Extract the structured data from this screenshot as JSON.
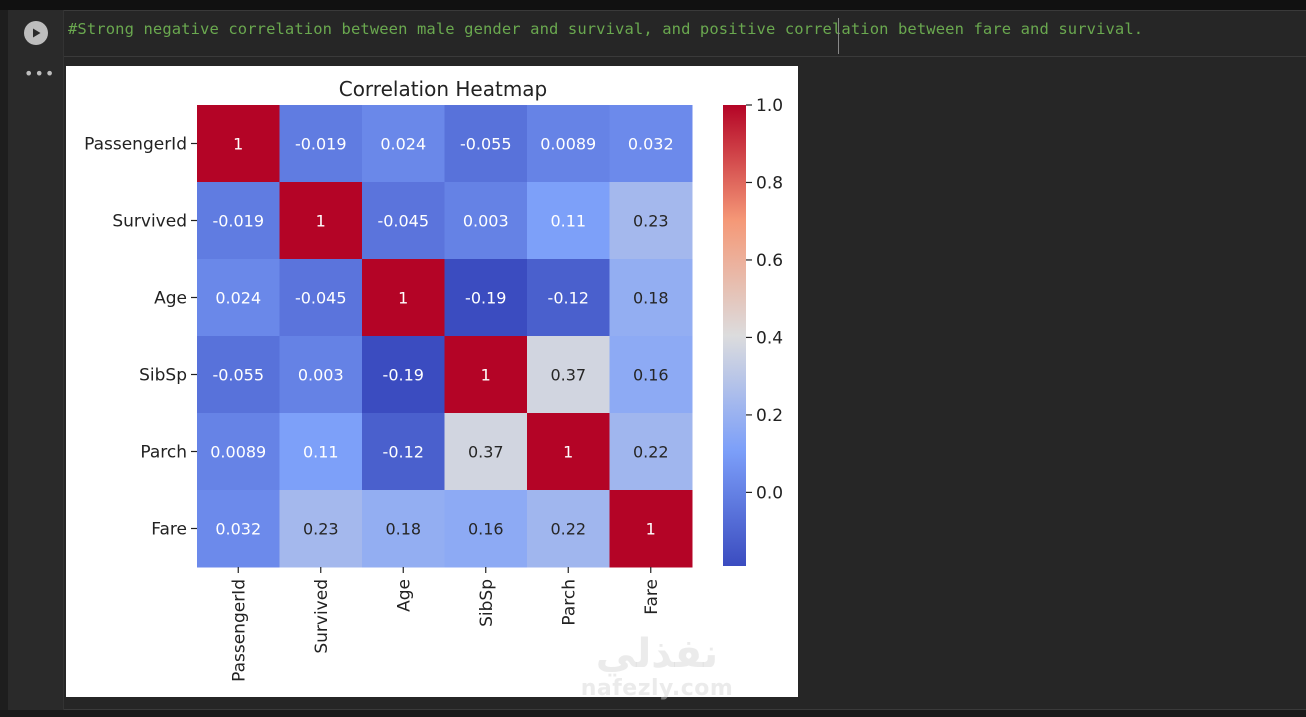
{
  "notebook": {
    "code_line": "#Strong negative correlation between male gender and survival, and positive correlation between fare and survival.",
    "run_icon": "play-icon",
    "more_icon": "more-horizontal-icon"
  },
  "chart_data": {
    "type": "heatmap",
    "title": "Correlation Heatmap",
    "labels": [
      "PassengerId",
      "Survived",
      "Age",
      "SibSp",
      "Parch",
      "Fare"
    ],
    "matrix": [
      [
        1,
        -0.019,
        0.024,
        -0.055,
        0.0089,
        0.032
      ],
      [
        -0.019,
        1,
        -0.045,
        0.003,
        0.11,
        0.23
      ],
      [
        0.024,
        -0.045,
        1,
        -0.19,
        -0.12,
        0.18
      ],
      [
        -0.055,
        0.003,
        -0.19,
        1,
        0.37,
        0.16
      ],
      [
        0.0089,
        0.11,
        -0.12,
        0.37,
        1,
        0.22
      ],
      [
        0.032,
        0.23,
        0.18,
        0.16,
        0.22,
        1
      ]
    ],
    "cell_text": [
      [
        "1",
        "-0.019",
        "0.024",
        "-0.055",
        "0.0089",
        "0.032"
      ],
      [
        "-0.019",
        "1",
        "-0.045",
        "0.003",
        "0.11",
        "0.23"
      ],
      [
        "0.024",
        "-0.045",
        "1",
        "-0.19",
        "-0.12",
        "0.18"
      ],
      [
        "-0.055",
        "0.003",
        "-0.19",
        "1",
        "0.37",
        "0.16"
      ],
      [
        "0.0089",
        "0.11",
        "-0.12",
        "0.37",
        "1",
        "0.22"
      ],
      [
        "0.032",
        "0.23",
        "0.18",
        "0.16",
        "0.22",
        "1"
      ]
    ],
    "colormap": "coolwarm",
    "vmin": -0.19,
    "vmax": 1.0,
    "colorbar_ticks": [
      "0.0",
      "0.2",
      "0.4",
      "0.6",
      "0.8",
      "1.0"
    ],
    "colorbar_tick_values": [
      0.0,
      0.2,
      0.4,
      0.6,
      0.8,
      1.0
    ]
  },
  "watermark": {
    "arabic": "نفذلي",
    "latin": "nafezly.com"
  }
}
